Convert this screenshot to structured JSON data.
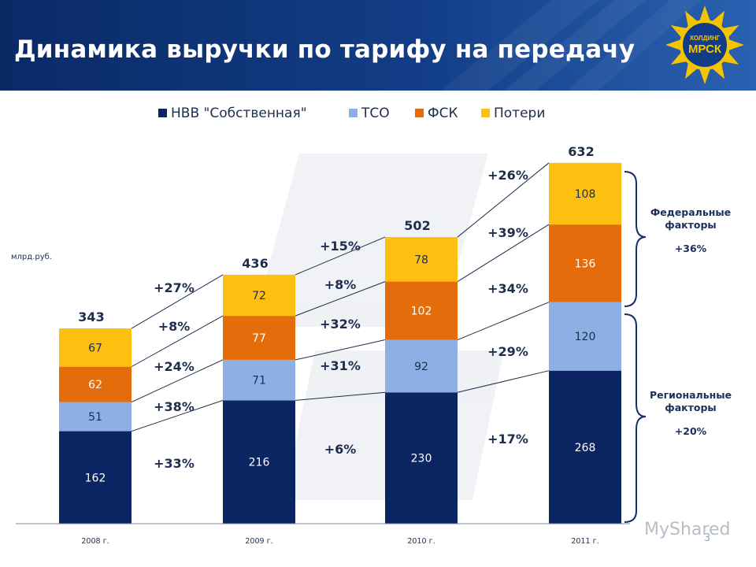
{
  "header": {
    "title": "Динамика выручки по тарифу на передачу",
    "logo_text_top": "ХОЛДИНГ",
    "logo_text_main": "МРСК"
  },
  "chart_data": {
    "type": "bar",
    "stacked": true,
    "unit_label": "млрд.руб.",
    "categories": [
      "2008 г.",
      "2009 г.",
      "2010 г.",
      "2011 г."
    ],
    "series": [
      {
        "name": "НВВ \"Собственная\"",
        "color": "#0b2462",
        "label_color": "#ffffff",
        "values": [
          162,
          216,
          230,
          268
        ]
      },
      {
        "name": "ТСО",
        "color": "#8cb0e3",
        "label_color": "#1d2d4d",
        "values": [
          51,
          71,
          92,
          120
        ]
      },
      {
        "name": "ФСК",
        "color": "#e46c0a",
        "label_color": "#ffffff",
        "values": [
          62,
          77,
          102,
          136
        ]
      },
      {
        "name": "Потери",
        "color": "#fdbf10",
        "label_color": "#1d2d4d",
        "values": [
          67,
          72,
          78,
          108
        ]
      }
    ],
    "totals": [
      343,
      436,
      502,
      632
    ],
    "growth_labels": [
      {
        "total": "+27%",
        "series": [
          "+33%",
          "+38%",
          "+24%",
          "+8%"
        ]
      },
      {
        "total": "+15%",
        "series": [
          "+6%",
          "+31%",
          "+32%",
          "+8%"
        ]
      },
      {
        "total": "+26%",
        "series": [
          "+17%",
          "+29%",
          "+34%",
          "+39%"
        ]
      }
    ],
    "legend_position": "top",
    "grid": false
  },
  "side_notes": {
    "federal_label": "Федеральные факторы",
    "federal_value": "+36%",
    "regional_label": "Региональные факторы",
    "regional_value": "+20%"
  },
  "footer": {
    "page_number": "3",
    "watermark": "MyShared"
  }
}
